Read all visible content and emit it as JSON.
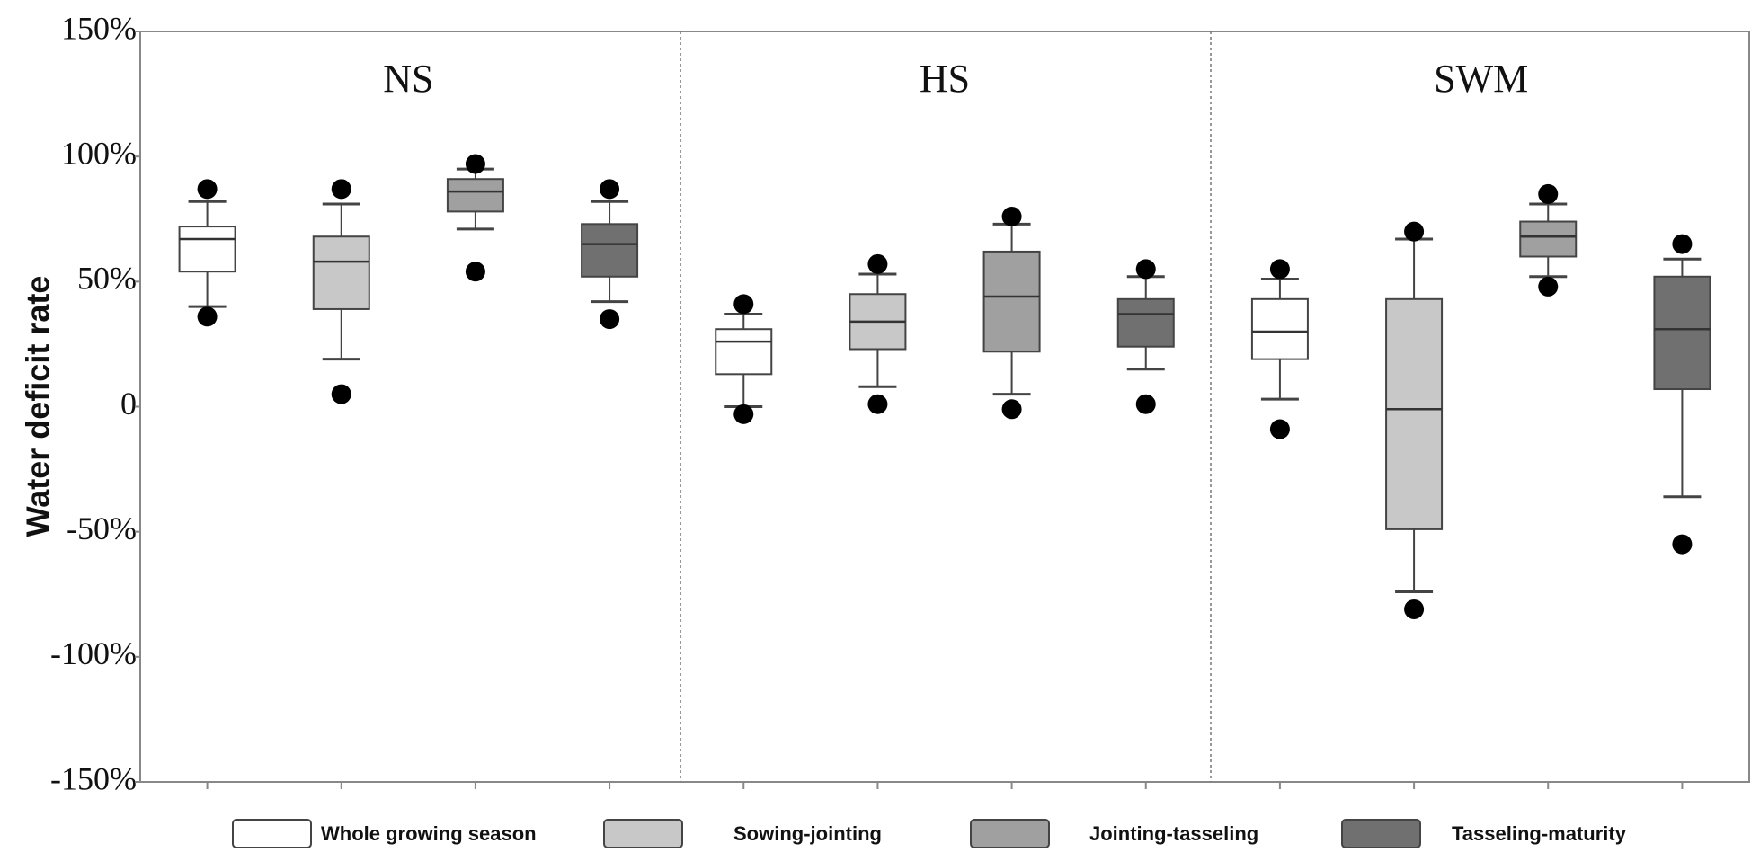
{
  "chart_data": {
    "type": "box",
    "y_label": "Water deficit rate",
    "groups": [
      "NS",
      "HS",
      "SWM"
    ],
    "ylim": [
      -150,
      150
    ],
    "yticks": [
      {
        "value": 150,
        "label": "150%"
      },
      {
        "value": 100,
        "label": "100%"
      },
      {
        "value": 50,
        "label": "50%"
      },
      0,
      {
        "value": -50,
        "label": "-50%"
      },
      {
        "value": -100,
        "label": "-100%"
      },
      {
        "value": -150,
        "label": "-150%"
      }
    ],
    "series": [
      {
        "name": "Whole growing season",
        "color": "#ffffff",
        "min": [
          40,
          0,
          3
        ],
        "q1": [
          54,
          13,
          19
        ],
        "median": [
          67,
          26,
          30
        ],
        "q3": [
          72,
          31,
          43
        ],
        "max": [
          82,
          37,
          51
        ],
        "outliers": [
          [
            87,
            36
          ],
          [
            41,
            -3
          ],
          [
            55,
            -9
          ]
        ]
      },
      {
        "name": "Sowing-jointing",
        "color": "#c8c8c8",
        "min": [
          19,
          8,
          -74
        ],
        "q1": [
          39,
          23,
          -49
        ],
        "median": [
          58,
          34,
          -1
        ],
        "q3": [
          68,
          45,
          43
        ],
        "max": [
          81,
          53,
          67
        ],
        "outliers": [
          [
            87,
            5
          ],
          [
            57,
            1
          ],
          [
            70,
            -81
          ]
        ]
      },
      {
        "name": "Jointing-tasseling",
        "color": "#a0a0a0",
        "min": [
          71,
          5,
          52
        ],
        "q1": [
          78,
          22,
          60
        ],
        "median": [
          86,
          44,
          68
        ],
        "q3": [
          91,
          62,
          74
        ],
        "max": [
          95,
          73,
          81
        ],
        "outliers": [
          [
            97,
            54
          ],
          [
            76,
            -1
          ],
          [
            85,
            48
          ]
        ]
      },
      {
        "name": "Tasseling-maturity",
        "color": "#707070",
        "min": [
          42,
          15,
          -36
        ],
        "q1": [
          52,
          24,
          7
        ],
        "median": [
          65,
          37,
          31
        ],
        "q3": [
          73,
          43,
          52
        ],
        "max": [
          82,
          52,
          59
        ],
        "outliers": [
          [
            87,
            35
          ],
          [
            55,
            1
          ],
          [
            65,
            -55
          ]
        ]
      }
    ]
  }
}
